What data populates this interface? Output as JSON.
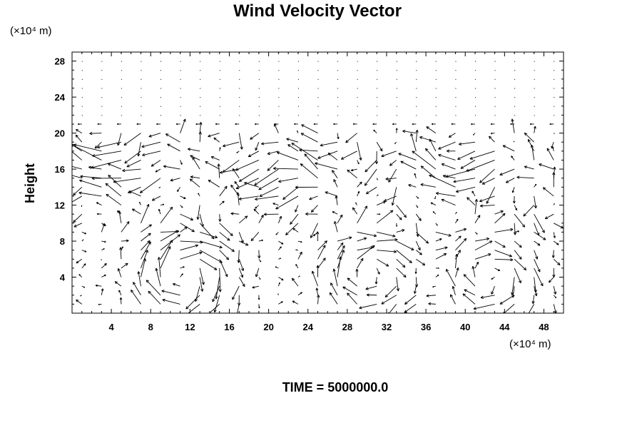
{
  "chart_data": {
    "type": "vector-field",
    "title": "Wind Velocity Vector",
    "ylabel": "Height",
    "y_unit": "(×10⁴ m)",
    "x_unit": "(×10⁴ m)",
    "xlim": [
      0,
      50
    ],
    "ylim": [
      0,
      29
    ],
    "x_ticks": [
      4,
      8,
      12,
      16,
      20,
      24,
      28,
      32,
      36,
      40,
      44,
      48
    ],
    "y_ticks": [
      4,
      8,
      12,
      16,
      20,
      24,
      28
    ],
    "x_tick_labels": [
      "4",
      "8",
      "12",
      "16",
      "20",
      "24",
      "28",
      "32",
      "36",
      "40",
      "44",
      "48"
    ],
    "y_tick_labels": [
      "4",
      "8",
      "12",
      "16",
      "20",
      "24",
      "28"
    ],
    "grid": false,
    "grid_spacing": [
      2,
      1
    ],
    "vortices": [
      {
        "x": 11.5,
        "y": 4,
        "strength": 1.6,
        "direction": "clockwise"
      },
      {
        "x": 30.5,
        "y": 4,
        "strength": 1.3,
        "direction": "clockwise"
      },
      {
        "x": 42.5,
        "y": 4,
        "strength": 1.3,
        "direction": "clockwise"
      }
    ],
    "jet_band": {
      "y_range": [
        12,
        20
      ],
      "direction": "westerly",
      "approx_speed": 2.0
    },
    "calm_above": 20.5
  },
  "footer": {
    "time_label": "TIME = 5000000.0"
  }
}
